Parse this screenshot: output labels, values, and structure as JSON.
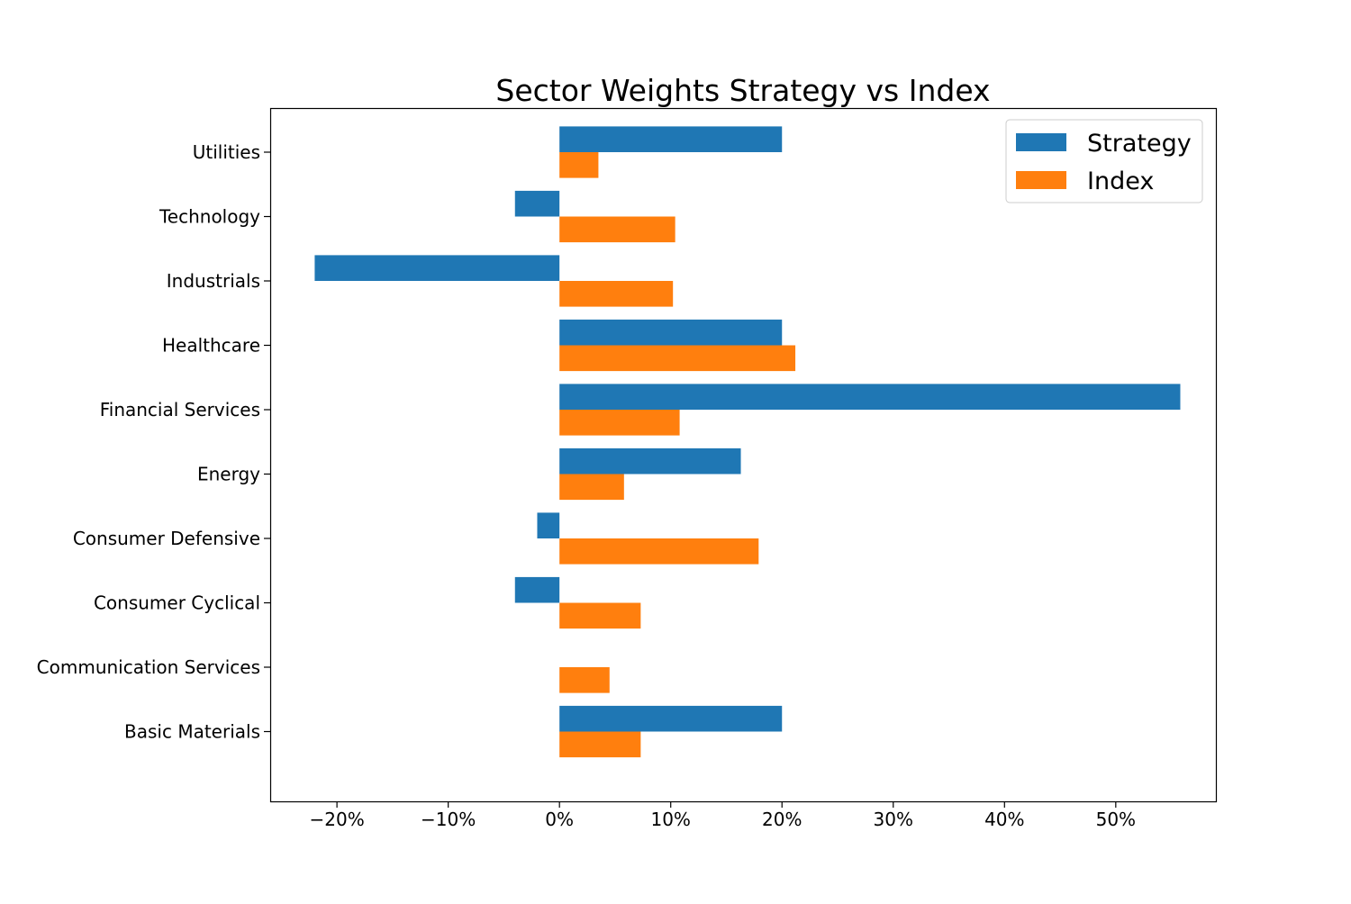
{
  "chart_data": {
    "type": "bar",
    "orientation": "horizontal",
    "title": "Sector Weights Strategy vs Index",
    "xlabel": "",
    "ylabel": "",
    "xlim": [
      -26,
      59
    ],
    "x_ticks": [
      -20,
      -10,
      0,
      10,
      20,
      30,
      40,
      50
    ],
    "x_tick_labels": [
      "−20%",
      "−10%",
      "0%",
      "10%",
      "20%",
      "30%",
      "40%",
      "50%"
    ],
    "grid": false,
    "legend_position": "top-right",
    "categories": [
      "Basic Materials",
      "Communication Services",
      "Consumer Cyclical",
      "Consumer Defensive",
      "Energy",
      "Financial Services",
      "Healthcare",
      "Industrials",
      "Technology",
      "Utilities"
    ],
    "series": [
      {
        "name": "Strategy",
        "color": "#1f77b4",
        "values": [
          20.0,
          0.0,
          -4.0,
          -2.0,
          16.3,
          55.8,
          20.0,
          -22.0,
          -4.0,
          20.0
        ]
      },
      {
        "name": "Index",
        "color": "#ff7f0e",
        "values": [
          7.3,
          4.5,
          7.3,
          17.9,
          5.8,
          10.8,
          21.2,
          10.2,
          10.4,
          3.5
        ]
      }
    ]
  }
}
